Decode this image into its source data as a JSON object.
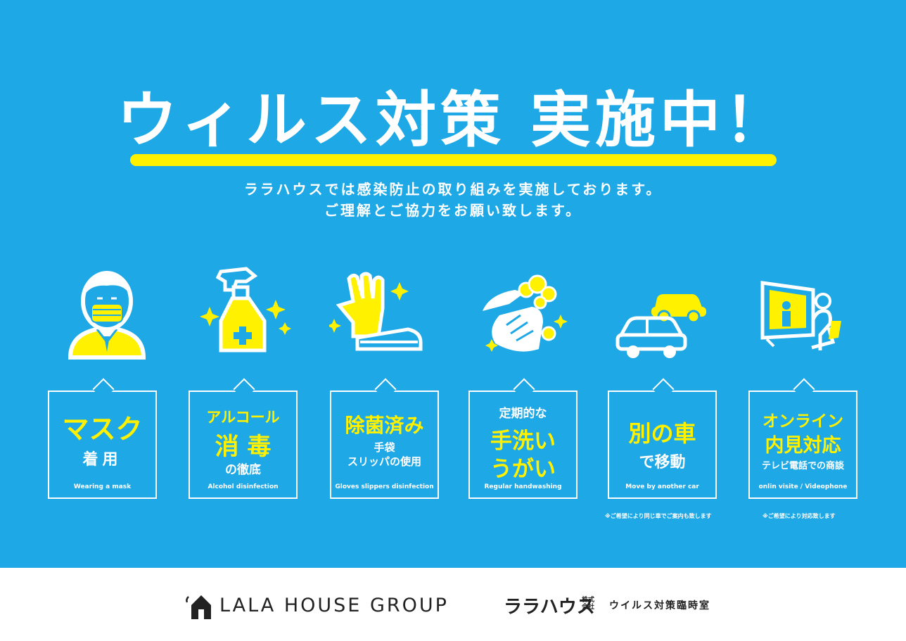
{
  "title": "ウィルス対策 実施中！",
  "lead": {
    "line1": "ララハウスでは感染防止の取り組みを実施しております。",
    "line2": "ご理解とご協力をお願い致します。"
  },
  "colors": {
    "background": "#1ea8e6",
    "accent_yellow": "#fff100",
    "white": "#ffffff",
    "footer_text": "#222222"
  },
  "cards": [
    {
      "icon": "masked-person-icon",
      "line1": "マスク",
      "line2": "着用",
      "en": "Wearing a mask"
    },
    {
      "icon": "spray-bottle-icon",
      "line1": "アルコール",
      "line2": "消 毒",
      "line3": "の徹底",
      "en": "Alcohol disinfection"
    },
    {
      "icon": "gloves-slippers-icon",
      "line1": "除菌済み",
      "line2": "手袋",
      "line3": "スリッパの使用",
      "en": "Gloves slippers disinfection"
    },
    {
      "icon": "handwashing-icon",
      "line1": "定期的な",
      "line2": "手洗い",
      "line3": "うがい",
      "en": "Regular handwashing"
    },
    {
      "icon": "cars-icon",
      "line1": "別の車",
      "line2": "で移動",
      "en": "Move by another car",
      "note": "※ご希望により同じ車でご案内も致します"
    },
    {
      "icon": "video-call-icon",
      "line1": "オンライン",
      "line2": "内見対応",
      "line3": "テレビ電話での商談",
      "en": "onlin visite / Videophone",
      "note": "※ご希望により対応致します"
    }
  ],
  "footer": {
    "brand_icon": "house-logo-icon",
    "brand": "LALA HOUSE GROUP",
    "company": "ララハウス",
    "company_type": "株式会社",
    "department": "ウイルス対策臨時室"
  }
}
